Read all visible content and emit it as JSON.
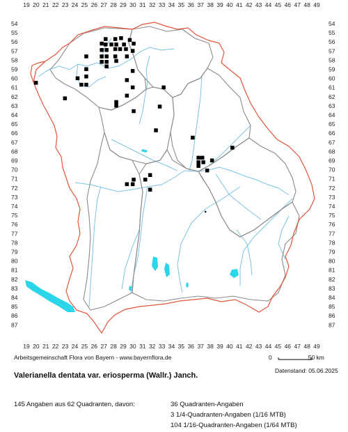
{
  "x_labels": [
    "19",
    "20",
    "21",
    "22",
    "23",
    "24",
    "25",
    "26",
    "27",
    "28",
    "29",
    "30",
    "31",
    "32",
    "33",
    "34",
    "35",
    "36",
    "37",
    "38",
    "39",
    "40",
    "41",
    "42",
    "43",
    "44",
    "45",
    "46",
    "47",
    "48",
    "49"
  ],
  "y_labels": [
    "54",
    "55",
    "56",
    "57",
    "58",
    "59",
    "60",
    "61",
    "62",
    "63",
    "64",
    "65",
    "66",
    "67",
    "68",
    "69",
    "70",
    "71",
    "72",
    "73",
    "74",
    "75",
    "76",
    "77",
    "78",
    "79",
    "80",
    "81",
    "82",
    "83",
    "84",
    "85",
    "86",
    "87"
  ],
  "credit": "Arbeitsgemeinschaft Flora von Bayern - www.bayernflora.de",
  "scale": {
    "zero": "0",
    "label": "50 km"
  },
  "date": "Datenstand: 05.06.2025",
  "title": "Valerianella dentata var. eriosperma (Wallr.) Janch.",
  "stats": {
    "total": "145 Angaben aus 62 Quadranten, davon:",
    "q1": "36 Quadranten-Angaben",
    "q2": "3 1/4-Quadranten-Angaben (1/16 MTB)",
    "q3": "104 1/16-Quadranten-Angaben (1/64 MTB)"
  },
  "colors": {
    "border": "#e2553a",
    "districts": "#8a8a8a",
    "rivers": "#7bc3e0",
    "lakes": "#2bd6ea",
    "markers": "#000000"
  },
  "markers": [
    {
      "x": 27.2,
      "y": 55.7
    },
    {
      "x": 28.2,
      "y": 55.7
    },
    {
      "x": 28.8,
      "y": 55.6
    },
    {
      "x": 29.7,
      "y": 55.8
    },
    {
      "x": 26.8,
      "y": 56.2
    },
    {
      "x": 27.2,
      "y": 56.3
    },
    {
      "x": 27.8,
      "y": 56.3
    },
    {
      "x": 28.3,
      "y": 56.3
    },
    {
      "x": 29.1,
      "y": 56.3
    },
    {
      "x": 30.1,
      "y": 56.2
    },
    {
      "x": 26.8,
      "y": 56.9
    },
    {
      "x": 27.3,
      "y": 56.9
    },
    {
      "x": 28.2,
      "y": 56.8
    },
    {
      "x": 28.7,
      "y": 56.8
    },
    {
      "x": 29.3,
      "y": 56.8
    },
    {
      "x": 30.0,
      "y": 57.0
    },
    {
      "x": 25.2,
      "y": 57.6
    },
    {
      "x": 26.8,
      "y": 57.6
    },
    {
      "x": 27.3,
      "y": 57.6
    },
    {
      "x": 28.2,
      "y": 57.6
    },
    {
      "x": 29.4,
      "y": 57.6
    },
    {
      "x": 26.8,
      "y": 58.2
    },
    {
      "x": 27.3,
      "y": 58.2
    },
    {
      "x": 28.3,
      "y": 58.1
    },
    {
      "x": 27.3,
      "y": 58.7
    },
    {
      "x": 25.2,
      "y": 59.0
    },
    {
      "x": 30.0,
      "y": 59.2
    },
    {
      "x": 25.2,
      "y": 59.8
    },
    {
      "x": 24.3,
      "y": 60.0
    },
    {
      "x": 29.4,
      "y": 60.2
    },
    {
      "x": 20.0,
      "y": 60.5
    },
    {
      "x": 24.7,
      "y": 60.7
    },
    {
      "x": 25.2,
      "y": 60.7
    },
    {
      "x": 30.0,
      "y": 61.0
    },
    {
      "x": 33.2,
      "y": 61.0
    },
    {
      "x": 29.4,
      "y": 61.9
    },
    {
      "x": 23.0,
      "y": 62.2
    },
    {
      "x": 28.3,
      "y": 62.6
    },
    {
      "x": 28.3,
      "y": 63.0
    },
    {
      "x": 32.8,
      "y": 63.1
    },
    {
      "x": 30.1,
      "y": 63.6
    },
    {
      "x": 32.4,
      "y": 65.7
    },
    {
      "x": 36.2,
      "y": 66.5
    },
    {
      "x": 40.3,
      "y": 67.6
    },
    {
      "x": 36.8,
      "y": 68.7
    },
    {
      "x": 37.2,
      "y": 68.7
    },
    {
      "x": 36.8,
      "y": 69.2
    },
    {
      "x": 37.3,
      "y": 69.2
    },
    {
      "x": 38.2,
      "y": 69.0
    },
    {
      "x": 36.8,
      "y": 69.6
    },
    {
      "x": 37.7,
      "y": 70.1
    },
    {
      "x": 31.8,
      "y": 70.6
    },
    {
      "x": 30.1,
      "y": 71.1
    },
    {
      "x": 31.3,
      "y": 71.1
    },
    {
      "x": 29.4,
      "y": 71.6
    },
    {
      "x": 30.0,
      "y": 71.6
    },
    {
      "x": 31.8,
      "y": 72.2
    }
  ],
  "small_markers": [
    {
      "x": 37.5,
      "y": 74.6
    }
  ]
}
